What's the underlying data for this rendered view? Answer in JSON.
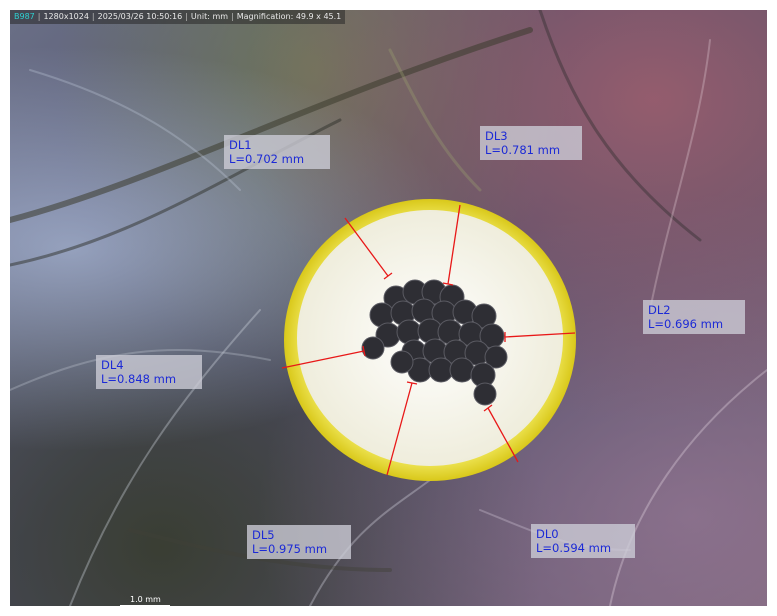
{
  "info_bar": {
    "camera_id": "B987",
    "resolution": "1280x1024",
    "datetime": "2025/03/26 10:50:16",
    "unit": "Unit: mm",
    "magnification": "Magnification: 49.9 x  45.1"
  },
  "measurements": [
    {
      "name": "DL0",
      "length": "L=0.594 mm"
    },
    {
      "name": "DL1",
      "length": "L=0.702 mm"
    },
    {
      "name": "DL2",
      "length": "L=0.696 mm"
    },
    {
      "name": "DL3",
      "length": "L=0.781 mm"
    },
    {
      "name": "DL4",
      "length": "L=0.848 mm"
    },
    {
      "name": "DL5",
      "length": "L=0.975 mm"
    }
  ],
  "scale_bar": {
    "label": "1.0 mm"
  },
  "colors": {
    "insulation_ring": "#e8df30",
    "insulation_fill": "#f7f5ea",
    "conductor": "#2e2e34",
    "measure_line": "#e81818",
    "label_text": "#1c2ad6"
  }
}
